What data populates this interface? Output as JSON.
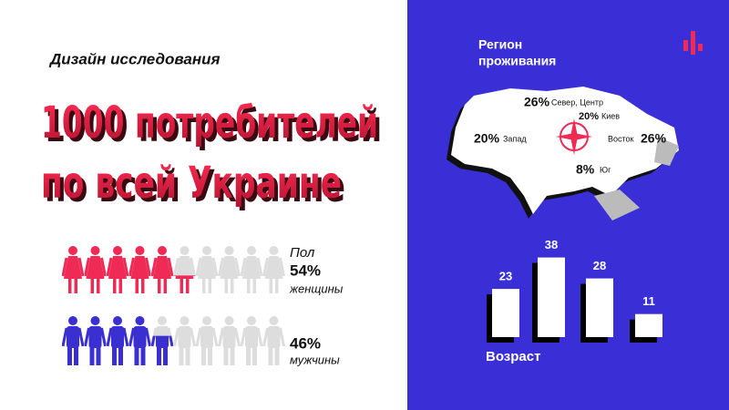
{
  "header": {
    "subtitle": "Дизайн исследования",
    "title_lines": [
      "1000 потребителей",
      "по всей Украине"
    ]
  },
  "gender": {
    "label": "Пол",
    "women": {
      "value": 54,
      "value_label": "54%",
      "caption": "женщины",
      "color": "#ee2a55"
    },
    "men": {
      "value": 46,
      "value_label": "46%",
      "caption": "мужчины",
      "color": "#3a2fd0"
    }
  },
  "region": {
    "title_lines": [
      "Регион",
      "проживания"
    ],
    "regions": [
      {
        "value": 26,
        "value_label": "26%",
        "name": "Север, Центр"
      },
      {
        "value": 20,
        "value_label": "20%",
        "name": "Киев"
      },
      {
        "value": 20,
        "value_label": "20%",
        "name": "Запад"
      },
      {
        "value": 26,
        "value_label": "26%",
        "name": "Восток"
      },
      {
        "value": 8,
        "value_label": "8%",
        "name": "Юг"
      }
    ]
  },
  "age": {
    "title": "Возраст",
    "values": [
      23,
      38,
      28,
      11
    ]
  }
}
